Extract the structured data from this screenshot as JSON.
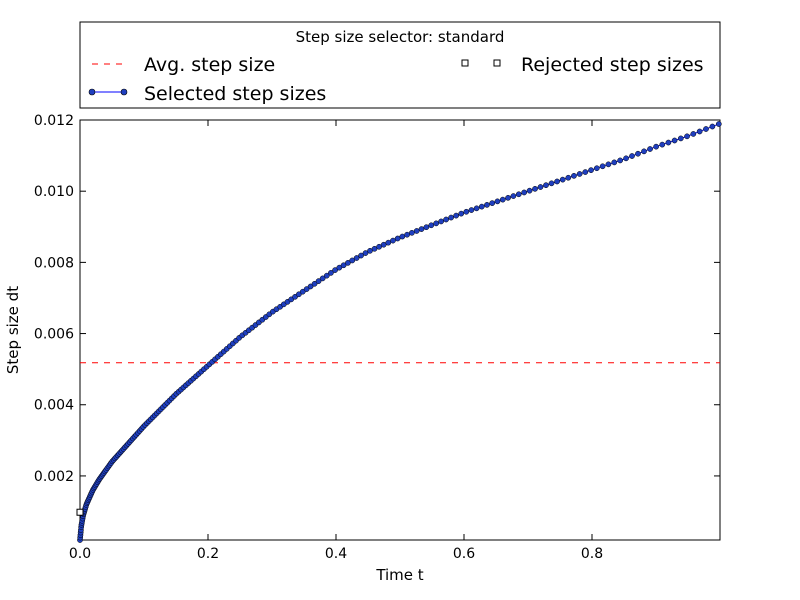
{
  "chart_data": {
    "type": "line",
    "title": "",
    "xlabel": "Time t",
    "ylabel": "Step size dt",
    "xlim": [
      0.0,
      1.0
    ],
    "ylim": [
      0.0002,
      0.012
    ],
    "x_ticks": [
      0.0,
      0.2,
      0.4,
      0.6,
      0.8
    ],
    "x_tick_labels": [
      "0.0",
      "0.2",
      "0.4",
      "0.6",
      "0.8"
    ],
    "y_ticks": [
      0.002,
      0.004,
      0.006,
      0.008,
      0.01,
      0.012
    ],
    "y_tick_labels": [
      "0.002",
      "0.004",
      "0.006",
      "0.008",
      "0.010",
      "0.012"
    ],
    "grid": false,
    "legend": {
      "title": "Step size selector: standard",
      "placement": "top",
      "entries": [
        "Avg. step size",
        "Rejected step sizes",
        "Selected step sizes"
      ]
    },
    "colors": {
      "selected_line": "#0000ff",
      "selected_marker": "#1f3fbf",
      "avg_line": "#ff0000",
      "rejected_marker": "#ffffff"
    },
    "series": [
      {
        "name": "Avg. step size",
        "kind": "hline",
        "style": "dashed",
        "y": 0.00518
      },
      {
        "name": "Rejected step sizes",
        "kind": "scatter",
        "marker": "square",
        "x": [
          0.0
        ],
        "y": [
          0.00098
        ]
      },
      {
        "name": "Selected step sizes",
        "kind": "line-markers",
        "x": [
          0.0,
          0.002,
          0.005,
          0.01,
          0.02,
          0.03,
          0.05,
          0.075,
          0.1,
          0.15,
          0.2,
          0.25,
          0.3,
          0.35,
          0.4,
          0.45,
          0.5,
          0.55,
          0.6,
          0.65,
          0.7,
          0.75,
          0.8,
          0.85,
          0.9,
          0.95,
          1.0
        ],
        "y": [
          0.0002,
          0.0006,
          0.0009,
          0.0012,
          0.0016,
          0.0019,
          0.0024,
          0.0029,
          0.0034,
          0.0043,
          0.0051,
          0.0059,
          0.0066,
          0.0072,
          0.0078,
          0.0083,
          0.0087,
          0.00905,
          0.0094,
          0.0097,
          0.01,
          0.0103,
          0.0106,
          0.0109,
          0.01125,
          0.01155,
          0.0119
        ]
      }
    ]
  }
}
